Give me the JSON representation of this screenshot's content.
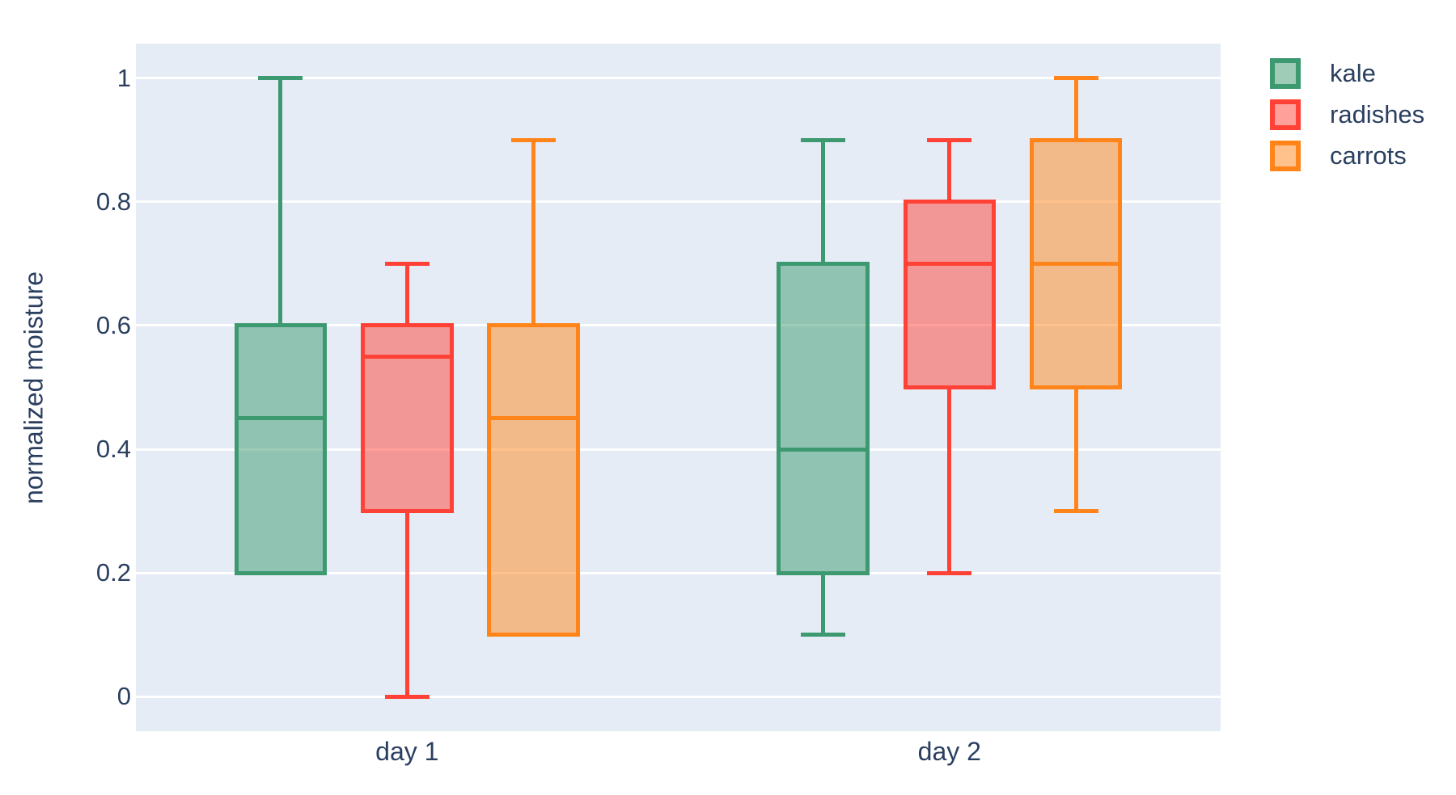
{
  "figure": {
    "page_bg": "#ffffff",
    "plot_bg": "#e5ecf6",
    "grid_color": "#ffffff",
    "text_color": "#2a3f5f"
  },
  "chart_data": {
    "type": "box",
    "orientation": "vertical",
    "boxmode": "group",
    "title": "",
    "xlabel": "",
    "ylabel": "normalized moisture",
    "categories": [
      "day 1",
      "day 2"
    ],
    "yticks": [
      {
        "value": 0,
        "label": "0"
      },
      {
        "value": 0.2,
        "label": "0.2"
      },
      {
        "value": 0.4,
        "label": "0.4"
      },
      {
        "value": 0.6,
        "label": "0.6"
      },
      {
        "value": 0.8,
        "label": "0.8"
      },
      {
        "value": 1,
        "label": "1"
      }
    ],
    "ylim": [
      -0.0556,
      1.0556
    ],
    "grid": true,
    "legend": {
      "position": "outside-top-right"
    },
    "series": [
      {
        "name": "kale",
        "color": "#3D9970",
        "fill_opacity": 0.5,
        "boxes": [
          {
            "category": "day 1",
            "whisker_low": 0.2,
            "q1": 0.2,
            "median": 0.45,
            "q3": 0.6,
            "whisker_high": 1.0
          },
          {
            "category": "day 2",
            "whisker_low": 0.1,
            "q1": 0.2,
            "median": 0.4,
            "q3": 0.7,
            "whisker_high": 0.9
          }
        ]
      },
      {
        "name": "radishes",
        "color": "#FF4136",
        "fill_opacity": 0.5,
        "boxes": [
          {
            "category": "day 1",
            "whisker_low": 0.0,
            "q1": 0.3,
            "median": 0.55,
            "q3": 0.6,
            "whisker_high": 0.7
          },
          {
            "category": "day 2",
            "whisker_low": 0.2,
            "q1": 0.5,
            "median": 0.7,
            "q3": 0.8,
            "whisker_high": 0.9
          }
        ]
      },
      {
        "name": "carrots",
        "color": "#FF851B",
        "fill_opacity": 0.5,
        "boxes": [
          {
            "category": "day 1",
            "whisker_low": 0.1,
            "q1": 0.1,
            "median": 0.45,
            "q3": 0.6,
            "whisker_high": 0.9
          },
          {
            "category": "day 2",
            "whisker_low": 0.3,
            "q1": 0.5,
            "median": 0.7,
            "q3": 0.9,
            "whisker_high": 1.0
          }
        ]
      }
    ]
  }
}
